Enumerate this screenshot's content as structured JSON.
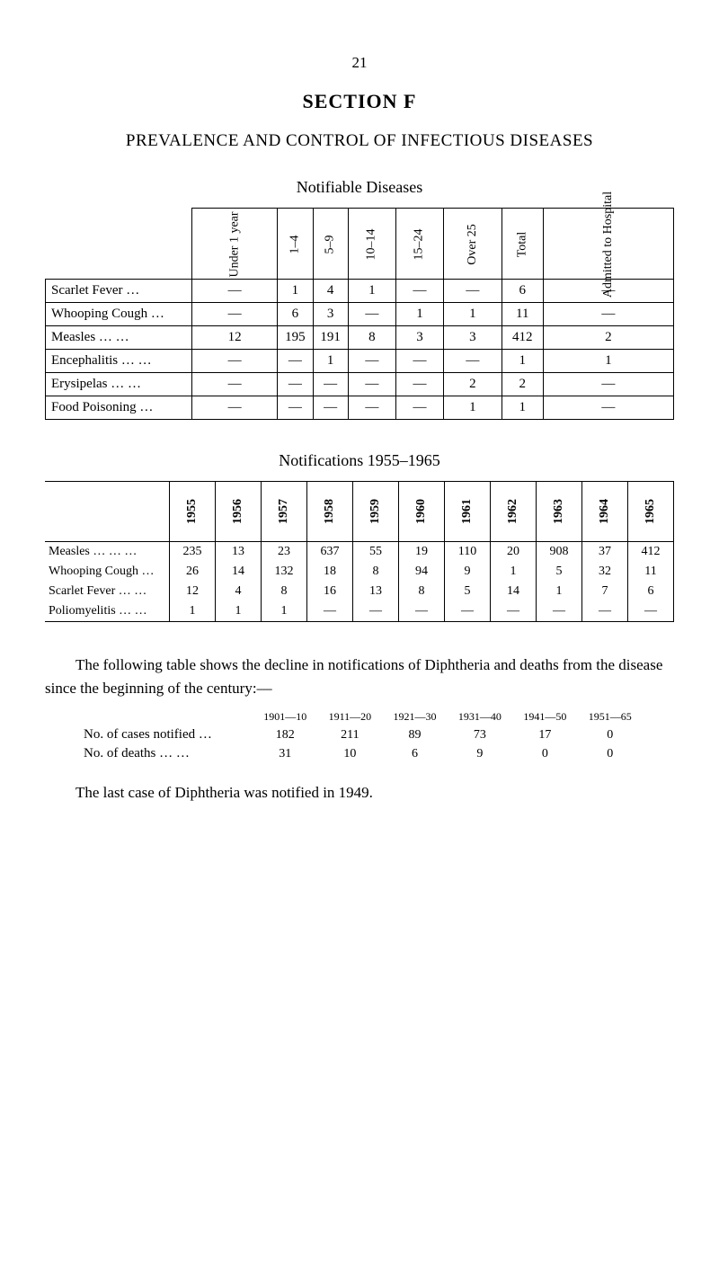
{
  "page_number": "21",
  "section_label": "SECTION F",
  "title": "PREVALENCE AND CONTROL OF INFECTIOUS DISEASES",
  "table1": {
    "title": "Notifiable Diseases",
    "headers": [
      "Under\n1 year",
      "1–4",
      "5–9",
      "10–14",
      "15–24",
      "Over 25",
      "Total",
      "Admitted\nto Hospital"
    ],
    "rows": [
      {
        "label": "Scarlet Fever    …",
        "cells": [
          "—",
          "1",
          "4",
          "1",
          "—",
          "—",
          "6",
          "—"
        ]
      },
      {
        "label": "Whooping Cough …",
        "cells": [
          "—",
          "6",
          "3",
          "—",
          "1",
          "1",
          "11",
          "—"
        ]
      },
      {
        "label": "Measles     …    …",
        "cells": [
          "12",
          "195",
          "191",
          "8",
          "3",
          "3",
          "412",
          "2"
        ]
      },
      {
        "label": "Encephalitis  …    …",
        "cells": [
          "—",
          "—",
          "1",
          "—",
          "—",
          "—",
          "1",
          "1"
        ]
      },
      {
        "label": "Erysipelas   …    …",
        "cells": [
          "—",
          "—",
          "—",
          "—",
          "—",
          "2",
          "2",
          "—"
        ]
      },
      {
        "label": "Food Poisoning   …",
        "cells": [
          "—",
          "—",
          "—",
          "—",
          "—",
          "1",
          "1",
          "—"
        ]
      }
    ]
  },
  "table2": {
    "title": "Notifications 1955–1965",
    "headers": [
      "1955",
      "1956",
      "1957",
      "1958",
      "1959",
      "1960",
      "1961",
      "1962",
      "1963",
      "1964",
      "1965"
    ],
    "rows": [
      {
        "label": "Measles  …  …  …",
        "cells": [
          "235",
          "13",
          "23",
          "637",
          "55",
          "19",
          "110",
          "20",
          "908",
          "37",
          "412"
        ]
      },
      {
        "label": "Whooping Cough …",
        "cells": [
          "26",
          "14",
          "132",
          "18",
          "8",
          "94",
          "9",
          "1",
          "5",
          "32",
          "11"
        ]
      },
      {
        "label": "Scarlet Fever  …  …",
        "cells": [
          "12",
          "4",
          "8",
          "16",
          "13",
          "8",
          "5",
          "14",
          "1",
          "7",
          "6"
        ]
      },
      {
        "label": "Poliomyelitis  …  …",
        "cells": [
          "1",
          "1",
          "1",
          "—",
          "—",
          "—",
          "—",
          "—",
          "—",
          "—",
          "—"
        ]
      }
    ]
  },
  "paragraph1": "The following table shows the decline in notifications of Diphtheria and deaths from the disease since the beginning of the century:—",
  "decade_table": {
    "headers": [
      "1901—10",
      "1911—20",
      "1921—30",
      "1931—40",
      "1941—50",
      "1951—65"
    ],
    "rows": [
      {
        "label": "No. of cases notified  …",
        "cells": [
          "182",
          "211",
          "89",
          "73",
          "17",
          "0"
        ]
      },
      {
        "label": "No. of deaths …   …",
        "cells": [
          "31",
          "10",
          "6",
          "9",
          "0",
          "0"
        ]
      }
    ]
  },
  "paragraph2": "The last case of Diphtheria was notified in 1949."
}
